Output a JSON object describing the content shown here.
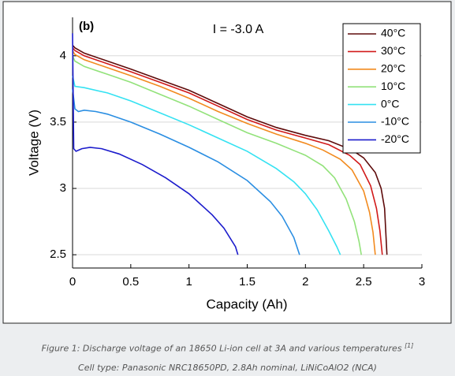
{
  "chart_data": {
    "type": "line",
    "annotations": [
      "(b)",
      "I = -3.0 A"
    ],
    "xlabel": "Capacity (Ah)",
    "ylabel": "Voltage (V)",
    "xlim": [
      0,
      3
    ],
    "xticks": [
      0,
      0.5,
      1,
      1.5,
      2,
      2.5,
      3
    ],
    "ylim": [
      2.4,
      4.29
    ],
    "yticks": [
      2.5,
      3,
      3.5,
      4
    ],
    "grid": true,
    "legend": "upper right",
    "series": [
      {
        "name": "40°C",
        "color": "#5e0b0b",
        "x": [
          0,
          0.02,
          0.1,
          0.3,
          0.5,
          0.75,
          1,
          1.25,
          1.5,
          1.75,
          2,
          2.2,
          2.4,
          2.5,
          2.6,
          2.65,
          2.68,
          2.7
        ],
        "values": [
          4.08,
          4.06,
          4.02,
          3.96,
          3.9,
          3.82,
          3.74,
          3.64,
          3.54,
          3.46,
          3.4,
          3.36,
          3.29,
          3.23,
          3.12,
          3.0,
          2.85,
          2.5
        ]
      },
      {
        "name": "30°C",
        "color": "#d11a1a",
        "x": [
          0,
          0.02,
          0.1,
          0.3,
          0.5,
          0.75,
          1,
          1.25,
          1.5,
          1.75,
          2,
          2.2,
          2.38,
          2.47,
          2.56,
          2.61,
          2.64,
          2.66
        ],
        "values": [
          4.06,
          4.04,
          4.0,
          3.94,
          3.88,
          3.8,
          3.72,
          3.62,
          3.52,
          3.44,
          3.38,
          3.33,
          3.25,
          3.18,
          3.02,
          2.85,
          2.68,
          2.5
        ]
      },
      {
        "name": "20°C",
        "color": "#f28a1e",
        "x": [
          0,
          0.02,
          0.1,
          0.3,
          0.5,
          0.75,
          1,
          1.25,
          1.5,
          1.75,
          2,
          2.15,
          2.3,
          2.4,
          2.5,
          2.55,
          2.58,
          2.6
        ],
        "values": [
          4.04,
          4.01,
          3.97,
          3.91,
          3.85,
          3.77,
          3.68,
          3.58,
          3.49,
          3.41,
          3.34,
          3.29,
          3.22,
          3.14,
          2.98,
          2.82,
          2.67,
          2.5
        ]
      },
      {
        "name": "10°C",
        "color": "#92e27a",
        "x": [
          0,
          0.02,
          0.1,
          0.3,
          0.5,
          0.75,
          1,
          1.25,
          1.5,
          1.75,
          2,
          2.15,
          2.25,
          2.35,
          2.42,
          2.46,
          2.48
        ],
        "values": [
          4.0,
          3.96,
          3.92,
          3.86,
          3.8,
          3.71,
          3.62,
          3.52,
          3.42,
          3.34,
          3.25,
          3.17,
          3.08,
          2.92,
          2.75,
          2.6,
          2.5
        ]
      },
      {
        "name": "0°C",
        "color": "#35e2f2",
        "x": [
          0,
          0.02,
          0.1,
          0.3,
          0.5,
          0.75,
          1,
          1.25,
          1.5,
          1.75,
          1.9,
          2.0,
          2.1,
          2.2,
          2.27,
          2.3
        ],
        "values": [
          3.85,
          3.77,
          3.76,
          3.72,
          3.66,
          3.57,
          3.48,
          3.38,
          3.28,
          3.15,
          3.05,
          2.96,
          2.84,
          2.68,
          2.56,
          2.5
        ]
      },
      {
        "name": "-10°C",
        "color": "#2a8ee2",
        "x": [
          0,
          0.02,
          0.05,
          0.1,
          0.2,
          0.3,
          0.5,
          0.75,
          1,
          1.25,
          1.5,
          1.7,
          1.8,
          1.9,
          1.95
        ],
        "values": [
          3.75,
          3.6,
          3.58,
          3.59,
          3.58,
          3.56,
          3.5,
          3.41,
          3.31,
          3.2,
          3.06,
          2.9,
          2.79,
          2.63,
          2.5
        ]
      },
      {
        "name": "-20°C",
        "color": "#1c1ccc",
        "x": [
          0,
          0.01,
          0.03,
          0.08,
          0.15,
          0.25,
          0.4,
          0.6,
          0.8,
          1.0,
          1.2,
          1.3,
          1.4,
          1.42
        ],
        "values": [
          4.17,
          3.3,
          3.28,
          3.3,
          3.31,
          3.3,
          3.26,
          3.18,
          3.08,
          2.96,
          2.8,
          2.7,
          2.56,
          2.5
        ]
      }
    ]
  },
  "caption": {
    "text": "Figure 1: Discharge voltage of an 18650 Li-ion cell at 3A and various temperatures",
    "ref": "[1]",
    "subtext": "Cell type: Panasonic NRC18650PD, 2.8Ah nominal, LiNiCoAlO2 (NCA)"
  }
}
